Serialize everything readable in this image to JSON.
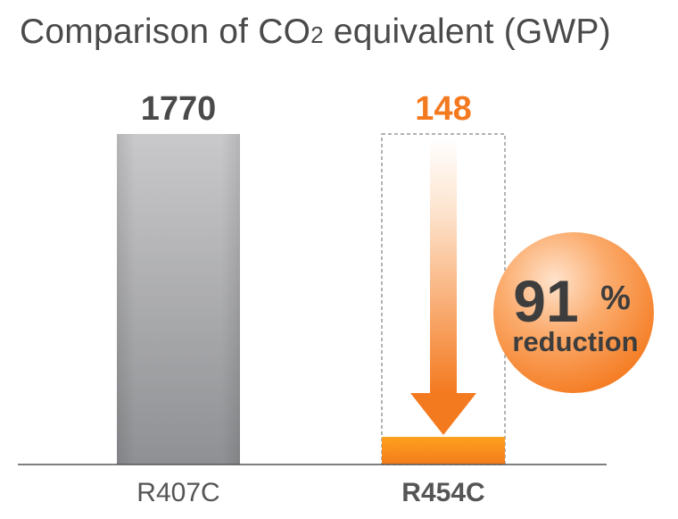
{
  "title_main": "Comparison of CO",
  "title_sub": "2",
  "title_rest": " equivalent (GWP)",
  "badge": {
    "number": "91",
    "percent": "%",
    "text": "reduction"
  },
  "colors": {
    "gray_bar_top": "#c8c8ca",
    "gray_bar_bottom": "#8e8f92",
    "orange": "#f47a20",
    "orange_light": "#ffd9b8",
    "value_gray": "#4a4a4a",
    "baseline": "#555555"
  },
  "chart_data": {
    "type": "bar",
    "title": "Comparison of CO2 equivalent (GWP)",
    "categories": [
      "R407C",
      "R454C"
    ],
    "values": [
      1770,
      148
    ],
    "value_labels": [
      "1770",
      "148"
    ],
    "ylim": [
      0,
      1770
    ],
    "grid": false,
    "legend": "none",
    "annotation": "91% reduction"
  }
}
